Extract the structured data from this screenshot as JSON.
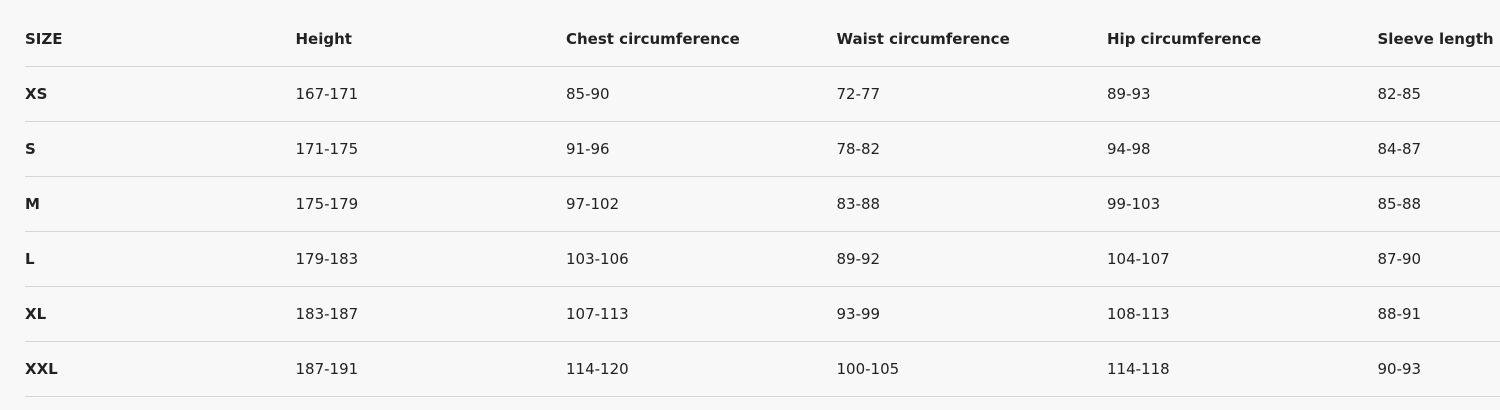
{
  "table": {
    "header": [
      "SIZE",
      "Height",
      "Chest circumference",
      "Waist circumference",
      "Hip circumference",
      "Sleeve length"
    ],
    "rows": [
      [
        "XS",
        "167-171",
        "85-90",
        "72-77",
        "89-93",
        "82-85"
      ],
      [
        "S",
        "171-175",
        "91-96",
        "78-82",
        "94-98",
        "84-87"
      ],
      [
        "M",
        "175-179",
        "97-102",
        "83-88",
        "99-103",
        "85-88"
      ],
      [
        "L",
        "179-183",
        "103-106",
        "89-92",
        "104-107",
        "87-90"
      ],
      [
        "XL",
        "183-187",
        "107-113",
        "93-99",
        "108-113",
        "88-91"
      ],
      [
        "XXL",
        "187-191",
        "114-120",
        "100-105",
        "114-118",
        "90-93"
      ]
    ]
  }
}
